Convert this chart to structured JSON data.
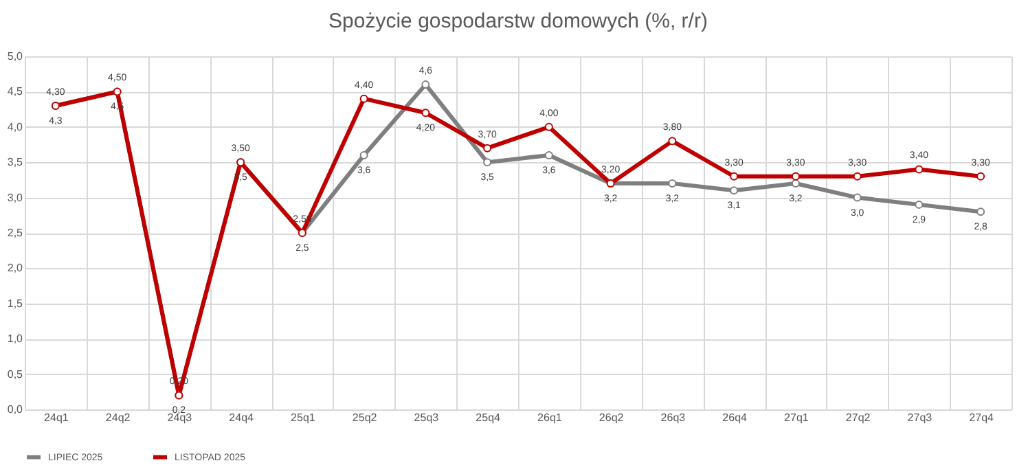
{
  "chart_data": {
    "type": "line",
    "title": "Spożycie gospodarstw domowych (%, r/r)",
    "categories": [
      "24q1",
      "24q2",
      "24q3",
      "24q4",
      "25q1",
      "25q2",
      "25q3",
      "25q4",
      "26q1",
      "26q2",
      "26q3",
      "26q4",
      "27q1",
      "27q2",
      "27q3",
      "27q4"
    ],
    "series": [
      {
        "name": "LIPIEC 2025",
        "color": "#7f7f7f",
        "values": [
          4.3,
          4.5,
          0.2,
          3.5,
          2.5,
          3.6,
          4.6,
          3.5,
          3.6,
          3.2,
          3.2,
          3.1,
          3.2,
          3.0,
          2.9,
          2.8
        ],
        "value_labels": [
          "4,3",
          "4,5",
          "0,2",
          "3,5",
          "2,5",
          "3,6",
          "4,6",
          "3,5",
          "3,6",
          "3,2",
          "3,2",
          "3,1",
          "3,2",
          "3,0",
          "2,9",
          "2,8"
        ]
      },
      {
        "name": "LISTOPAD 2025",
        "color": "#c00000",
        "values": [
          4.3,
          4.5,
          0.2,
          3.5,
          2.5,
          4.4,
          4.2,
          3.7,
          4.0,
          3.2,
          3.8,
          3.3,
          3.3,
          3.3,
          3.4,
          3.3
        ],
        "value_labels": [
          "4,30",
          "4,50",
          "0,20",
          "3,50",
          "2,50",
          "4,40",
          "4,20",
          "3,70",
          "4,00",
          "3,20",
          "3,80",
          "3,30",
          "3,30",
          "3,30",
          "3,40",
          "3,30"
        ]
      }
    ],
    "ylim": [
      0,
      5
    ],
    "yticks": [
      {
        "value": 0,
        "label": "0,0"
      },
      {
        "value": 0.5,
        "label": "0,5"
      },
      {
        "value": 1,
        "label": "1,0"
      },
      {
        "value": 1.5,
        "label": "1,5"
      },
      {
        "value": 2,
        "label": "2,0"
      },
      {
        "value": 2.5,
        "label": "2,5"
      },
      {
        "value": 3,
        "label": "3,0"
      },
      {
        "value": 3.5,
        "label": "3,5"
      },
      {
        "value": 4,
        "label": "4,0"
      },
      {
        "value": 4.5,
        "label": "4,5"
      },
      {
        "value": 5,
        "label": "5,0"
      }
    ],
    "grid": true,
    "legend": "bottom",
    "marker": "circle",
    "line_style": "solid"
  }
}
